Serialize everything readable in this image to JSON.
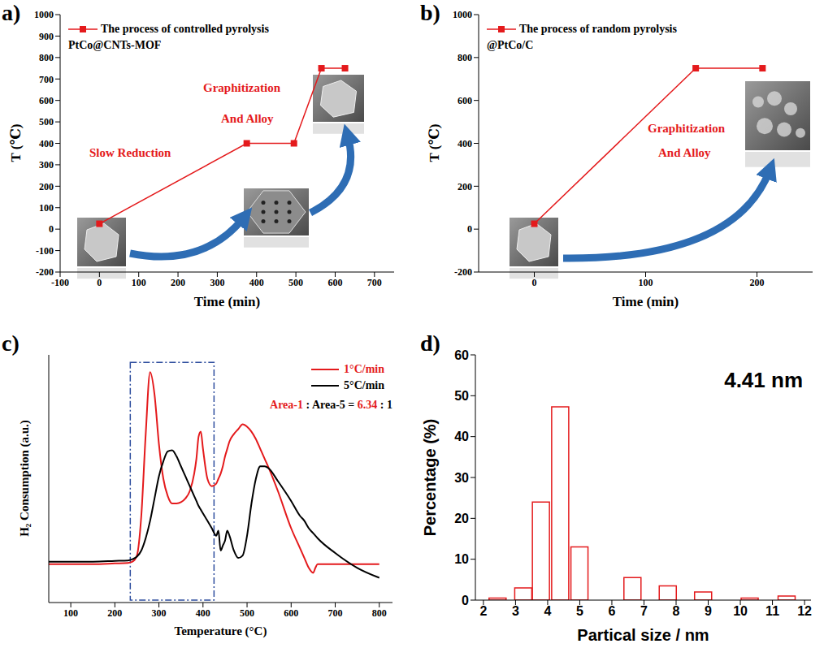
{
  "chart_data": [
    {
      "label": "a)",
      "type": "line",
      "x_label": "Time (min)",
      "y_label": "T (℃)",
      "subtitle": "PtCo@CNTs-MOF",
      "annotations": [
        "Slow Reduction",
        "Graphitization",
        "And Alloy"
      ],
      "x": [
        0,
        375,
        495,
        565,
        625
      ],
      "series": [
        {
          "name": "The process of controlled pyrolysis",
          "color": "#e41a1c",
          "marker": "square",
          "values": [
            25,
            400,
            400,
            750,
            750
          ]
        }
      ],
      "xlim": [
        -100,
        750
      ],
      "xticks": [
        -100,
        0,
        100,
        200,
        300,
        400,
        500,
        600,
        700
      ],
      "ylim": [
        -200,
        1000
      ],
      "yticks": [
        -200,
        -100,
        0,
        100,
        200,
        300,
        400,
        500,
        600,
        700,
        800,
        900,
        1000
      ],
      "legend": "upper left",
      "grid": false
    },
    {
      "label": "b)",
      "type": "line",
      "x_label": "Time (min)",
      "y_label": "T (℃)",
      "subtitle": "@PtCo/C",
      "annotations": [
        "Graphitization",
        "And Alloy"
      ],
      "x": [
        0,
        145,
        205
      ],
      "series": [
        {
          "name": "The process of random pyrolysis",
          "color": "#e41a1c",
          "marker": "square",
          "values": [
            25,
            750,
            750
          ]
        }
      ],
      "xlim": [
        -50,
        250
      ],
      "xticks": [
        0,
        100,
        200
      ],
      "ylim": [
        -200,
        1000
      ],
      "yticks": [
        -200,
        0,
        200,
        400,
        600,
        800,
        1000
      ],
      "legend": "upper left",
      "grid": false
    },
    {
      "label": "c)",
      "type": "line",
      "x_label": "Temperature (°C)",
      "y_label": "H₂ Consumption (a.u.)",
      "annotations": [
        "Area-1 : Area-5 = 6.34 : 1"
      ],
      "x": [
        50,
        100,
        150,
        200,
        230,
        240,
        250,
        260,
        270,
        280,
        290,
        300,
        310,
        320,
        330,
        340,
        350,
        360,
        370,
        380,
        385,
        390,
        395,
        400,
        410,
        420,
        430,
        435,
        440,
        445,
        450,
        455,
        460,
        470,
        480,
        490,
        500,
        510,
        520,
        530,
        540,
        550,
        570,
        600,
        620,
        630,
        640,
        650,
        655,
        660,
        700,
        750,
        800
      ],
      "series": [
        {
          "name": "1°C/min",
          "color": "#e41a1c",
          "values": [
            15.5,
            15.5,
            15.5,
            15.8,
            16,
            16.5,
            19,
            35,
            68,
            93,
            84,
            64,
            50,
            43,
            40,
            40,
            40.5,
            42,
            45,
            52,
            58,
            67,
            69,
            62,
            50,
            47,
            48,
            50,
            52,
            55,
            59,
            62,
            65,
            68,
            70,
            72,
            71,
            69,
            66,
            62,
            58,
            54,
            45,
            30,
            22,
            18,
            14,
            12,
            14,
            15.5,
            15.5,
            15.5,
            15.5
          ]
        },
        {
          "name": "5°C/min",
          "color": "#000000",
          "values": [
            16.5,
            16.5,
            16.5,
            16.8,
            17,
            17.5,
            18.5,
            21,
            26,
            33,
            42,
            51,
            57,
            61,
            61.5,
            59,
            55,
            51,
            47,
            43,
            41,
            39,
            37.5,
            36,
            33,
            30,
            27,
            29,
            21,
            23,
            25,
            29,
            27,
            21,
            18,
            19,
            27,
            40,
            50,
            55,
            55,
            54,
            49,
            41,
            35,
            33,
            30,
            28,
            27,
            26,
            20,
            14,
            10
          ]
        }
      ],
      "highlight": {
        "x": [
          235,
          425
        ],
        "y": [
          1,
          97
        ]
      },
      "xlim": [
        50,
        830
      ],
      "xticks": [
        100,
        200,
        300,
        400,
        500,
        600,
        700,
        800
      ],
      "ylim": [
        0,
        100
      ],
      "tick_labels": "x",
      "legend": "upper right",
      "grid": false
    },
    {
      "label": "d)",
      "type": "bar",
      "x_label": "Partical size / nm",
      "y_label": "Percentage (%)",
      "annotations": [
        "4.41 nm"
      ],
      "x": [
        2.45,
        3.25,
        3.8,
        4.4,
        5.0,
        6.65,
        7.75,
        8.85,
        10.3,
        11.45
      ],
      "values": [
        0.5,
        3,
        24,
        47.3,
        13,
        5.5,
        3.5,
        2,
        0.5,
        1
      ],
      "color": "#e41a1c",
      "xlim": [
        1.75,
        12.2
      ],
      "xticks": [
        2,
        3,
        4,
        5,
        6,
        7,
        8,
        9,
        10,
        11,
        12
      ],
      "ylim": [
        0,
        60
      ],
      "yticks": [
        0,
        10,
        20,
        30,
        40,
        50,
        60
      ],
      "grid": false
    }
  ]
}
